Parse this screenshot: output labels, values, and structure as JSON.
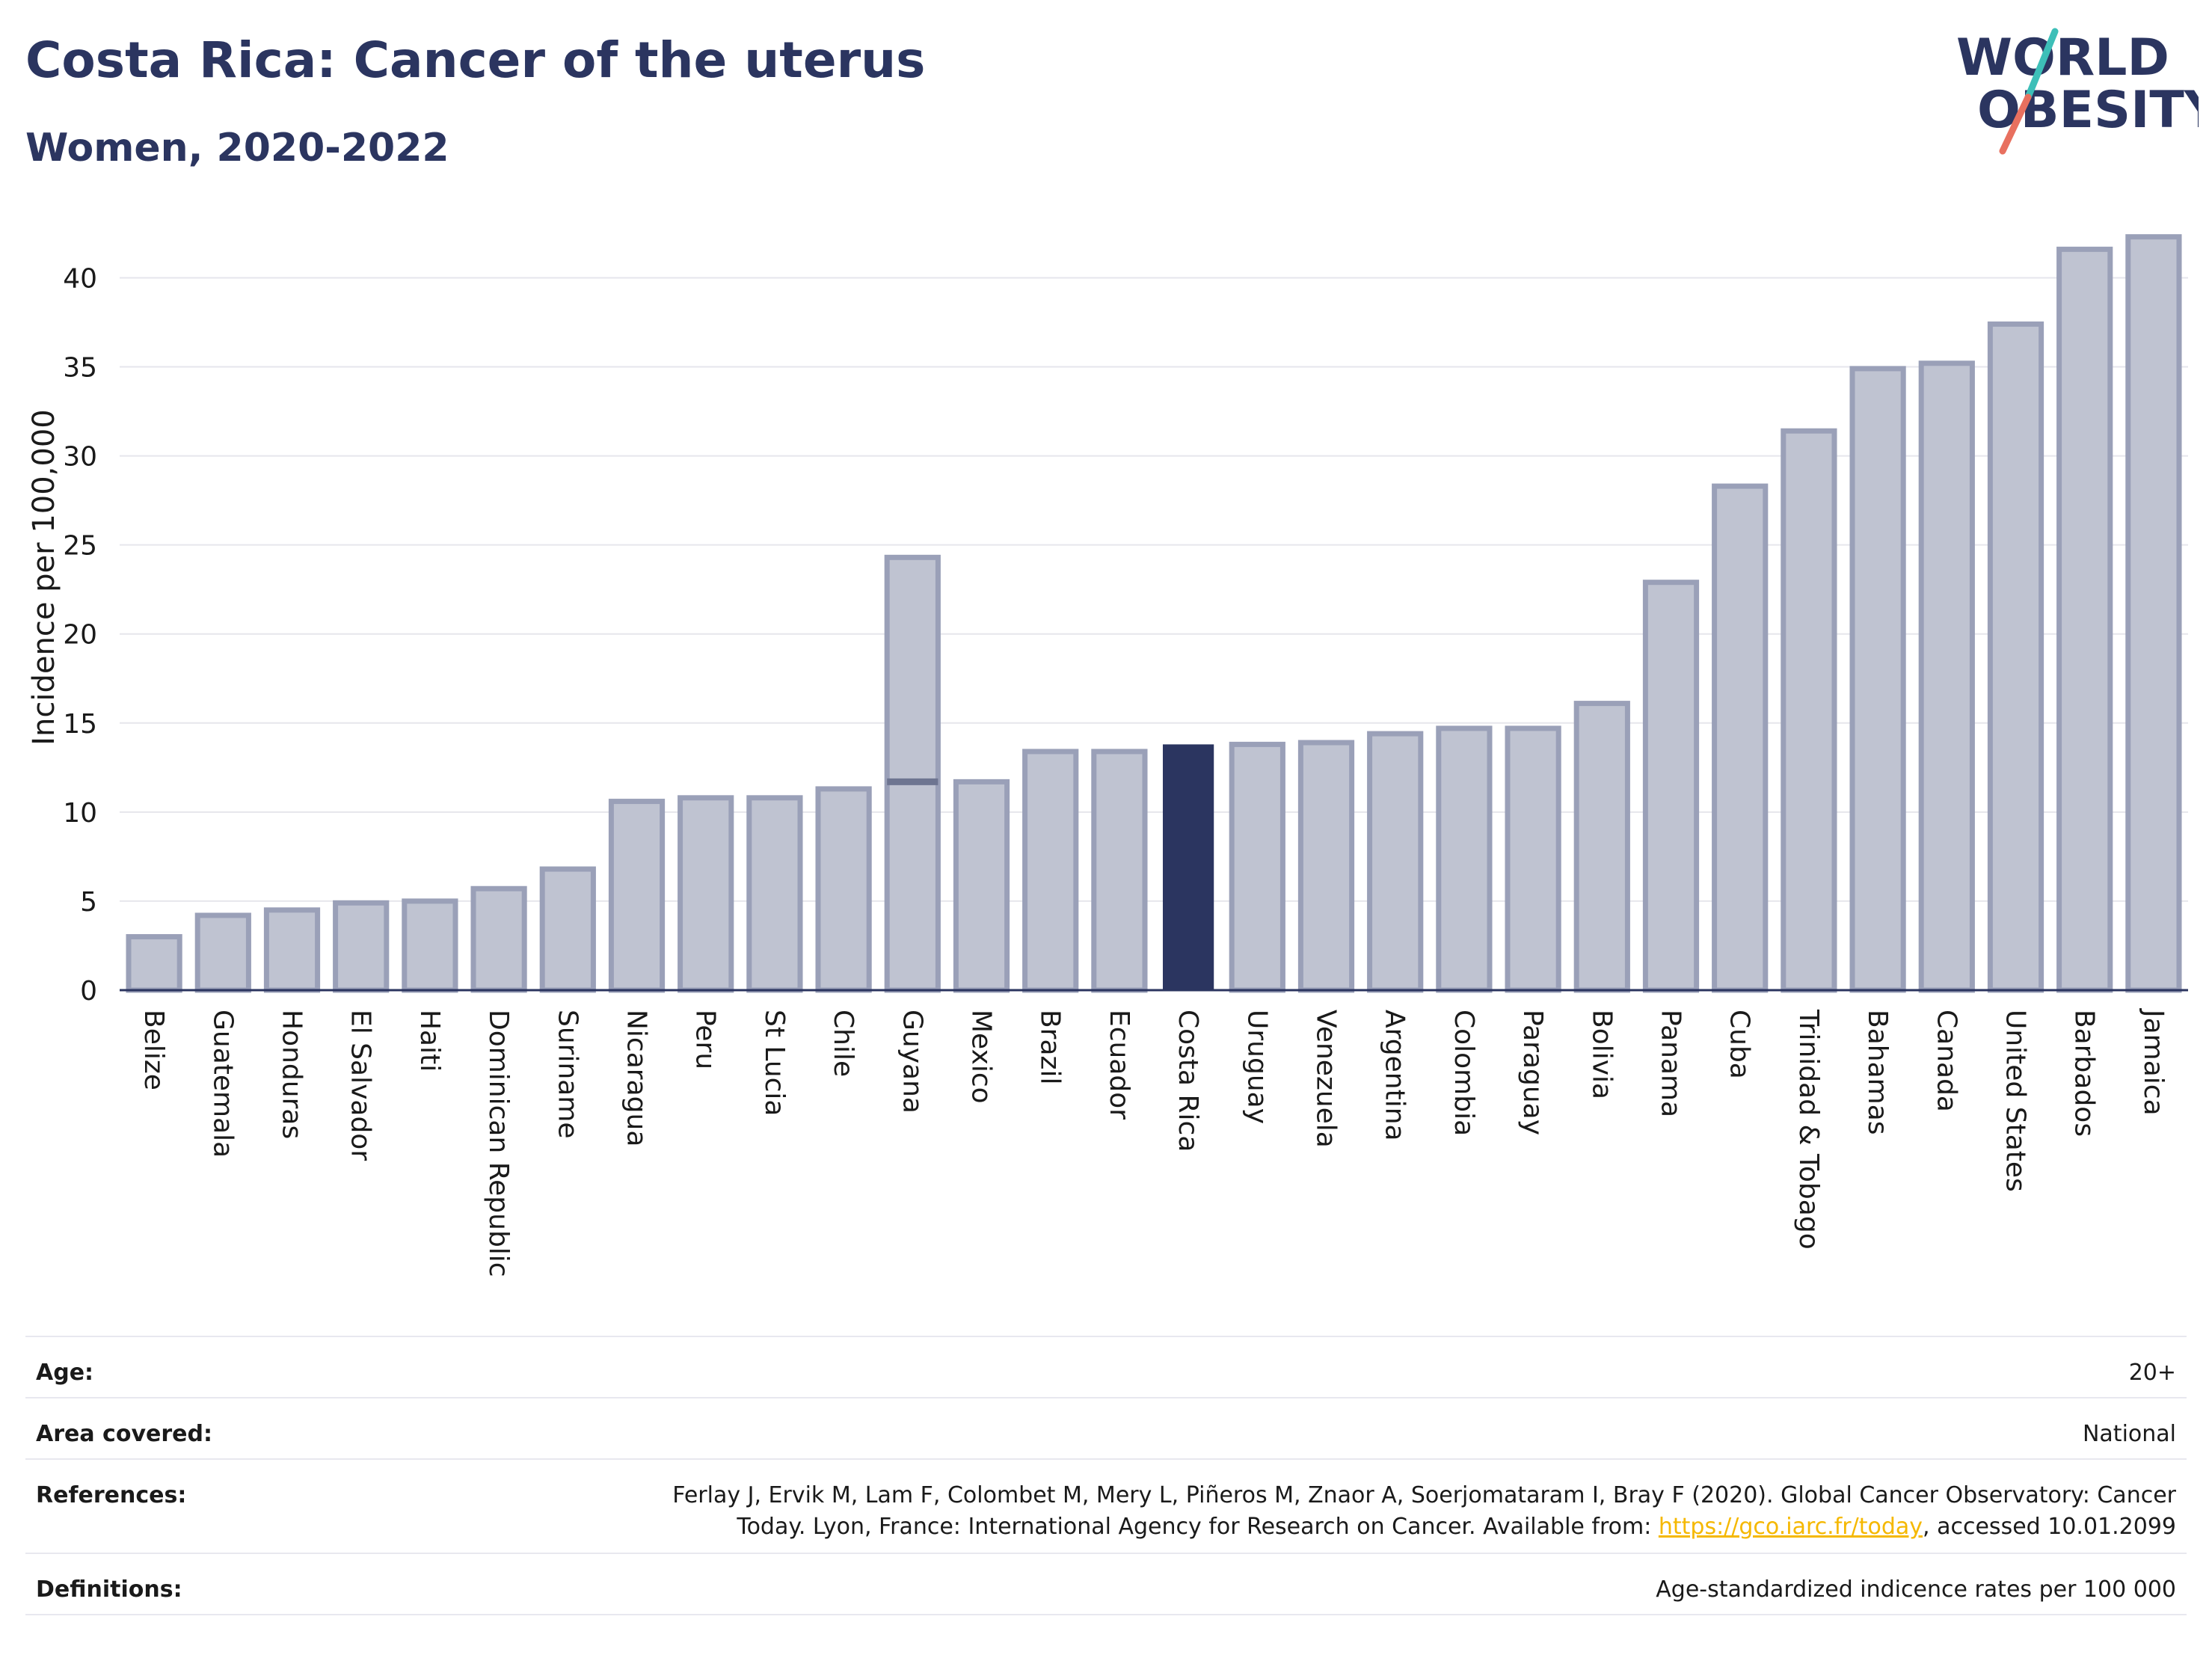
{
  "header": {
    "title": "Costa Rica: Cancer of the uterus",
    "subtitle": "Women, 2020-2022"
  },
  "logo": {
    "line1": "WORLD",
    "line2": "OBESITY",
    "accent_teal": "#3dbfb8",
    "accent_coral": "#e8705f"
  },
  "colors": {
    "bar_fill": "#bfc3d1",
    "bar_stroke": "#9aa0b8",
    "highlight": "#2b3560",
    "grid": "#e6e6ec",
    "text": "#2b3560"
  },
  "chart_data": {
    "type": "bar",
    "ylabel": "Incidence per 100,000",
    "xlabel": "",
    "ylim": [
      0,
      43
    ],
    "yticks": [
      0,
      5,
      10,
      15,
      20,
      25,
      30,
      35,
      40
    ],
    "highlight": "Costa Rica",
    "categories": [
      "Belize",
      "Guatemala",
      "Honduras",
      "El Salvador",
      "Haiti",
      "Dominican Republic",
      "Suriname",
      "Nicaragua",
      "Peru",
      "St Lucia",
      "Chile",
      "Guyana",
      "Mexico",
      "Brazil",
      "Ecuador",
      "Costa Rica",
      "Uruguay",
      "Venezuela",
      "Argentina",
      "Colombia",
      "Paraguay",
      "Bolivia",
      "Panama",
      "Cuba",
      "Trinidad & Tobago",
      "Bahamas",
      "Canada",
      "United States",
      "Barbados",
      "Jamaica"
    ],
    "values": [
      3.0,
      4.2,
      4.5,
      4.9,
      5.0,
      5.7,
      6.8,
      10.6,
      10.8,
      10.8,
      11.3,
      24.3,
      11.7,
      13.4,
      13.4,
      13.8,
      13.8,
      13.9,
      14.4,
      14.7,
      14.7,
      16.1,
      22.9,
      28.3,
      31.4,
      34.9,
      35.2,
      37.4,
      41.6,
      42.3
    ],
    "overlays": [
      {
        "category": "Guyana",
        "value": 11.7
      }
    ],
    "grid": true
  },
  "meta": {
    "age_label": "Age:",
    "age_value": "20+",
    "area_label": "Area covered:",
    "area_value": "National",
    "ref_label": "References:",
    "ref_line1": "Ferlay J, Ervik M, Lam F, Colombet M, Mery L, Piñeros M, Znaor A, Soerjomataram I, Bray F (2020). Global Cancer Observatory: Cancer",
    "ref_line2_pre": "Today. Lyon, France: International Agency for Research on Cancer. Available from: ",
    "ref_link": "https://gco.iarc.fr/today",
    "ref_line2_post": ", accessed 10.01.2099",
    "def_label": "Definitions:",
    "def_value": "Age-standardized indicence rates per 100 000"
  }
}
